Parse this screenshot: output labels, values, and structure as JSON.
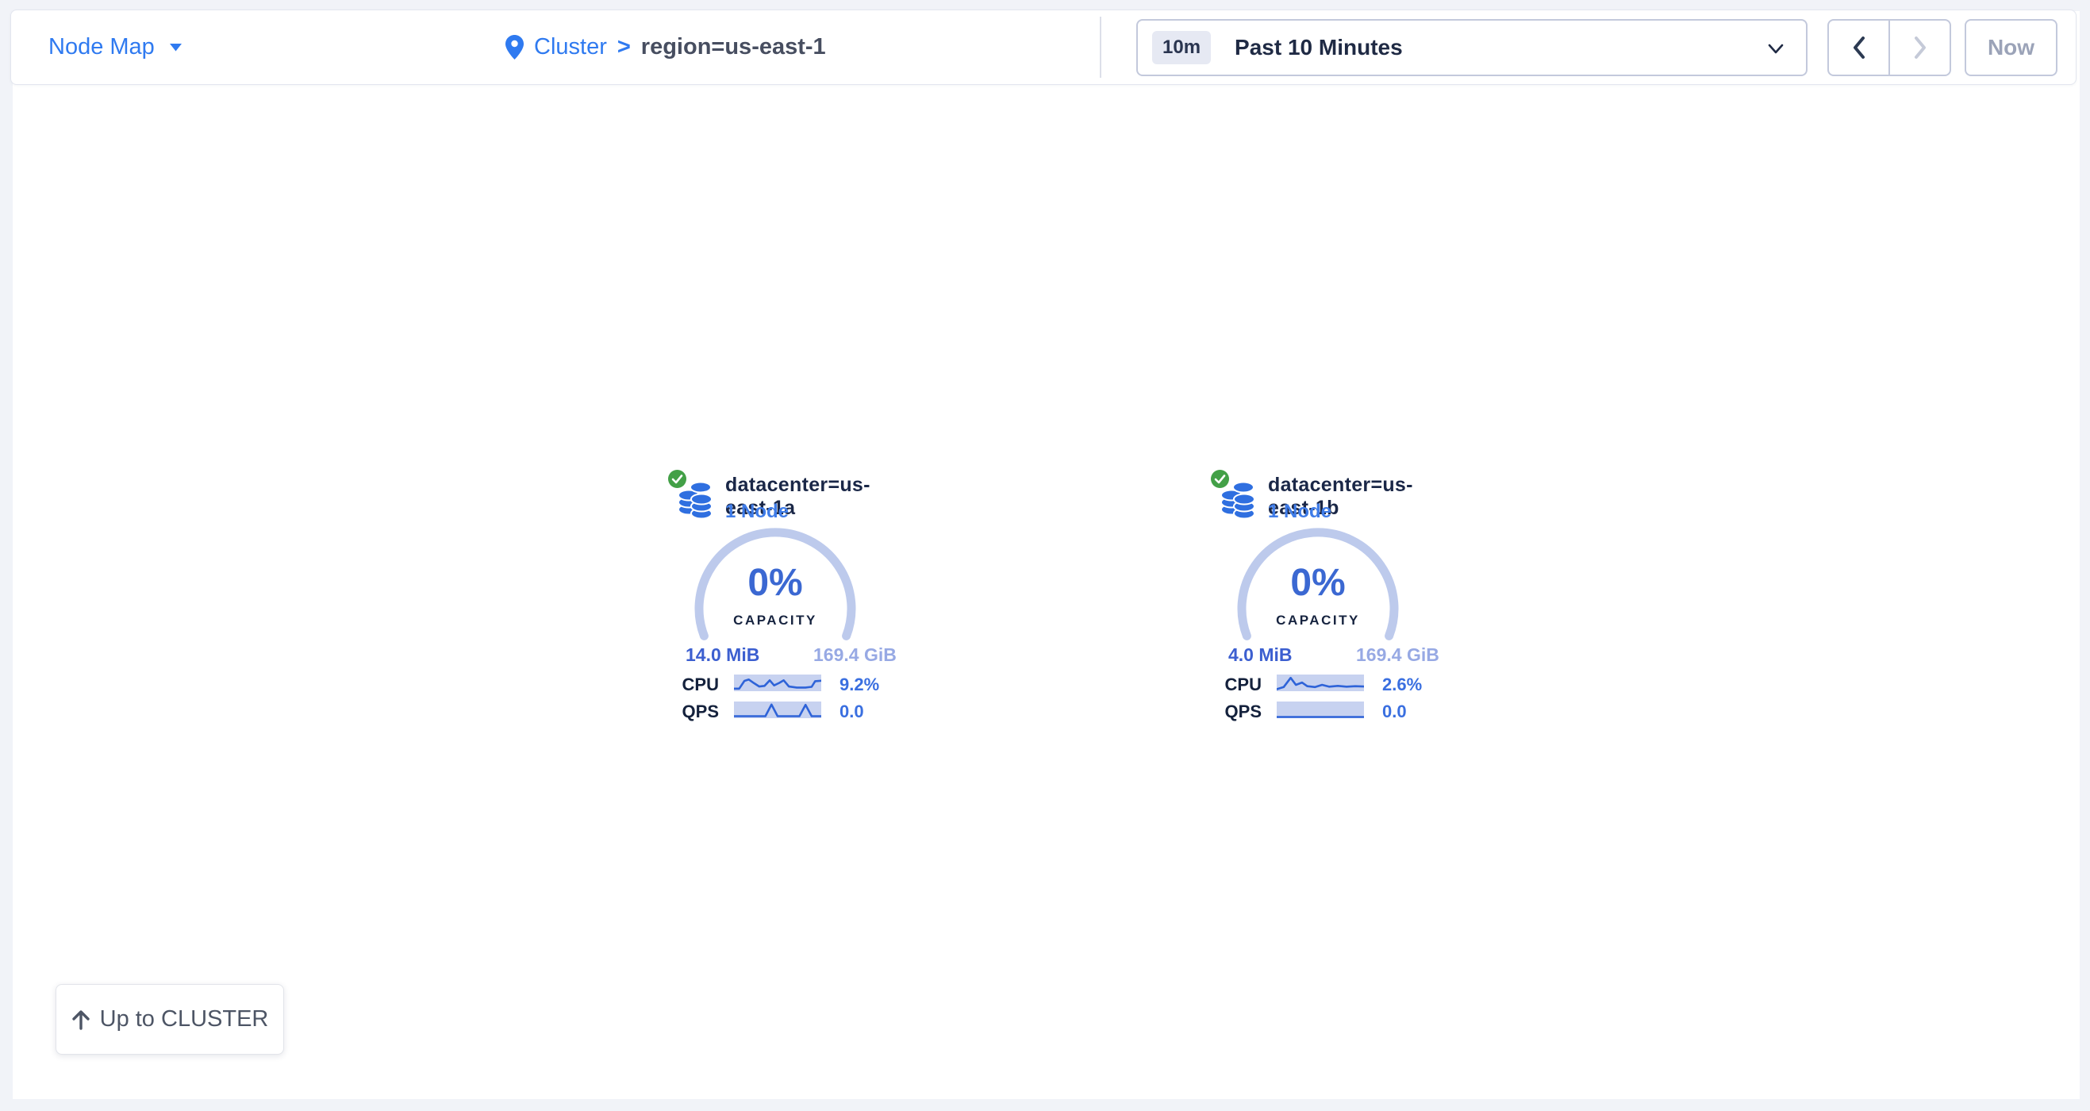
{
  "topbar": {
    "view_selector": {
      "label": "Node Map"
    },
    "breadcrumb": {
      "root": "Cluster",
      "separator": ">",
      "current": "region=us-east-1"
    },
    "time_selector": {
      "badge": "10m",
      "label": "Past 10 Minutes"
    },
    "now_button_label": "Now"
  },
  "cards": [
    {
      "title": "datacenter=us-east-1a",
      "subtitle": "1 Node",
      "capacity": {
        "pct": "0%",
        "label": "CAPACITY",
        "used": "14.0 MiB",
        "total": "169.4 GiB"
      },
      "stats": [
        {
          "label": "CPU",
          "value": "9.2%",
          "spark": [
            [
              0,
              0.85
            ],
            [
              0.06,
              0.85
            ],
            [
              0.12,
              0.38
            ],
            [
              0.17,
              0.3
            ],
            [
              0.23,
              0.52
            ],
            [
              0.29,
              0.72
            ],
            [
              0.35,
              0.68
            ],
            [
              0.41,
              0.35
            ],
            [
              0.46,
              0.65
            ],
            [
              0.52,
              0.5
            ],
            [
              0.57,
              0.35
            ],
            [
              0.63,
              0.72
            ],
            [
              0.72,
              0.78
            ],
            [
              0.82,
              0.78
            ],
            [
              0.89,
              0.74
            ],
            [
              0.93,
              0.4
            ],
            [
              1,
              0.37
            ]
          ]
        },
        {
          "label": "QPS",
          "value": "0.0",
          "spark": [
            [
              0,
              0.88
            ],
            [
              0.36,
              0.88
            ],
            [
              0.43,
              0.18
            ],
            [
              0.5,
              0.88
            ],
            [
              0.75,
              0.88
            ],
            [
              0.82,
              0.2
            ],
            [
              0.89,
              0.88
            ],
            [
              1,
              0.88
            ]
          ]
        }
      ]
    },
    {
      "title": "datacenter=us-east-1b",
      "subtitle": "1 Node",
      "capacity": {
        "pct": "0%",
        "label": "CAPACITY",
        "used": "4.0 MiB",
        "total": "169.4 GiB"
      },
      "stats": [
        {
          "label": "CPU",
          "value": "2.6%",
          "spark": [
            [
              0,
              0.88
            ],
            [
              0.08,
              0.75
            ],
            [
              0.16,
              0.2
            ],
            [
              0.22,
              0.62
            ],
            [
              0.29,
              0.48
            ],
            [
              0.35,
              0.7
            ],
            [
              0.44,
              0.75
            ],
            [
              0.52,
              0.62
            ],
            [
              0.6,
              0.73
            ],
            [
              0.7,
              0.68
            ],
            [
              0.8,
              0.73
            ],
            [
              0.9,
              0.7
            ],
            [
              1,
              0.72
            ]
          ]
        },
        {
          "label": "QPS",
          "value": "0.0",
          "spark": [
            [
              0,
              0.93
            ],
            [
              1,
              0.93
            ]
          ]
        }
      ]
    }
  ],
  "up_button": {
    "label": "Up to CLUSTER"
  },
  "icons": {
    "view_caret": "caret-down-icon",
    "breadcrumb_pin": "location-pin-icon",
    "time_chevron": "chevron-down-icon",
    "prev": "chevron-left-icon",
    "next": "chevron-right-icon",
    "card_status": "check-circle-icon",
    "card_glyph": "database-stack-icon",
    "up": "arrow-up-icon"
  },
  "colors": {
    "accent_blue": "#2f7af0",
    "gauge_track": "#bdcaec",
    "pct_blue": "#3b68d2",
    "spark_bg": "#c7d2f0",
    "spark_line": "#2e63d8",
    "status_green": "#43a047",
    "page_bg": "#f1f3f8",
    "used_blue": "#3c5fd0",
    "total_blue": "#97a9e4"
  }
}
